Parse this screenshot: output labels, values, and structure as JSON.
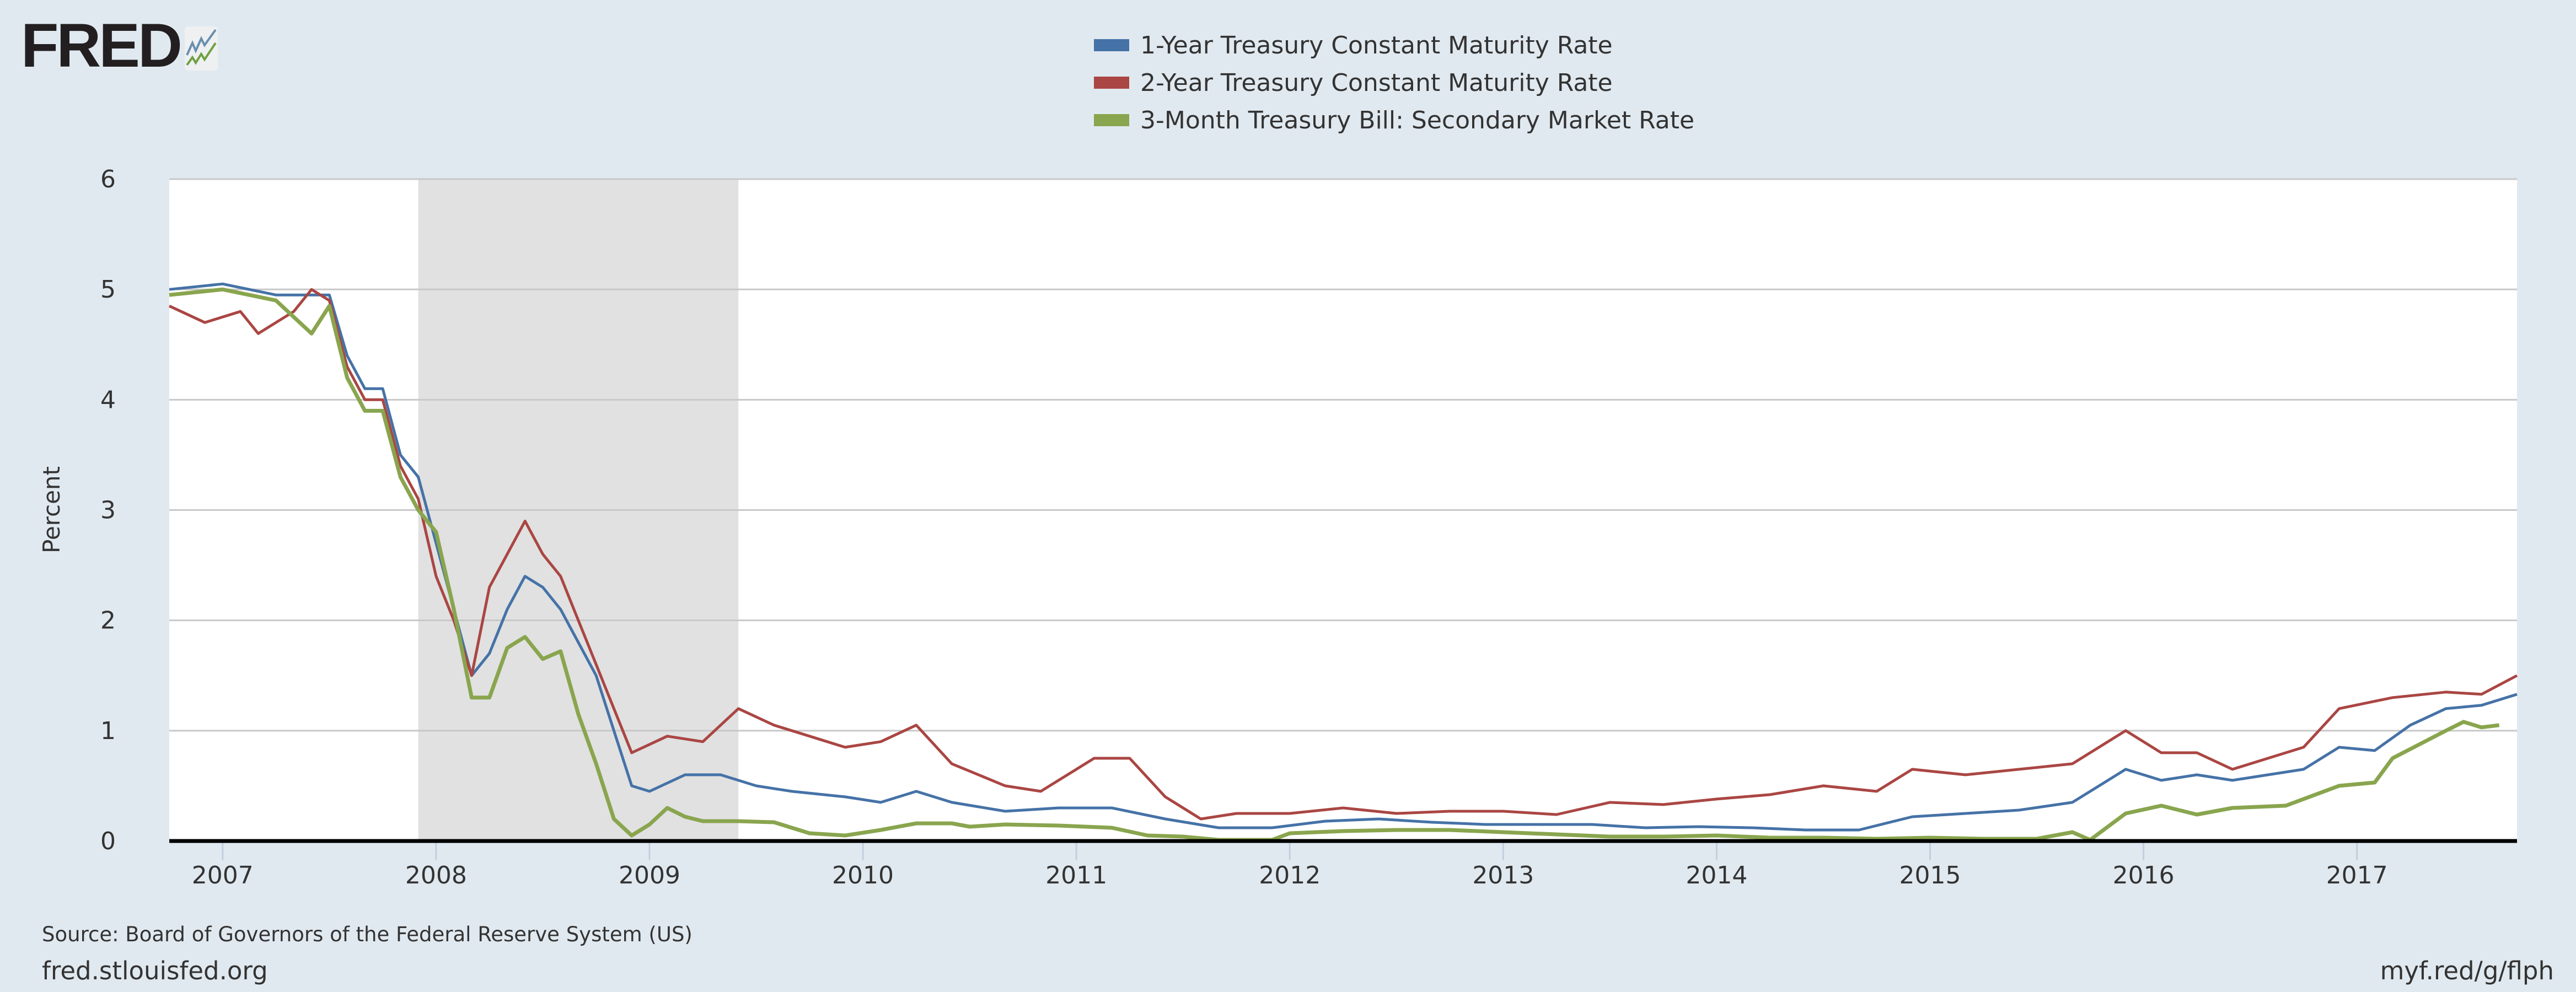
{
  "logo": {
    "text": "FRED"
  },
  "colors": {
    "series1": "#4572a7",
    "series2": "#aa4643",
    "series3": "#89a54e",
    "recession": "#e1e1e1",
    "background": "#e1e9f0"
  },
  "footer": {
    "source": "Source: Board of Governors of the Federal Reserve System (US)",
    "site": "fred.stlouisfed.org",
    "short_url": "myf.red/g/flph"
  },
  "chart_data": {
    "type": "line",
    "ylabel": "Percent",
    "ylim": [
      0,
      6
    ],
    "xlim": [
      "2006-10",
      "2017-10"
    ],
    "yticks": [
      "0",
      "1",
      "2",
      "3",
      "4",
      "5",
      "6"
    ],
    "xticks": [
      "2007",
      "2008",
      "2009",
      "2010",
      "2011",
      "2012",
      "2013",
      "2014",
      "2015",
      "2016",
      "2017"
    ],
    "grid": true,
    "legend_position": "top-center",
    "recessions": [
      {
        "start": "2007-12",
        "end": "2009-06"
      }
    ],
    "series": [
      {
        "name": "1-Year Treasury Constant Maturity Rate",
        "color": "#4572a7",
        "x": [
          "2006-10",
          "2007-01",
          "2007-04",
          "2007-07",
          "2007-08",
          "2007-09",
          "2007-10",
          "2007-11",
          "2007-12",
          "2008-01",
          "2008-02",
          "2008-03",
          "2008-04",
          "2008-05",
          "2008-06",
          "2008-07",
          "2008-08",
          "2008-09",
          "2008-10",
          "2008-11",
          "2008-12",
          "2009-01",
          "2009-03",
          "2009-05",
          "2009-07",
          "2009-09",
          "2009-12",
          "2010-02",
          "2010-04",
          "2010-06",
          "2010-09",
          "2010-12",
          "2011-03",
          "2011-06",
          "2011-09",
          "2011-12",
          "2012-03",
          "2012-06",
          "2012-09",
          "2012-12",
          "2013-03",
          "2013-06",
          "2013-09",
          "2013-12",
          "2014-03",
          "2014-06",
          "2014-09",
          "2014-12",
          "2015-03",
          "2015-06",
          "2015-09",
          "2015-12",
          "2016-02",
          "2016-04",
          "2016-06",
          "2016-08",
          "2016-10",
          "2016-12",
          "2017-02",
          "2017-04",
          "2017-06",
          "2017-08",
          "2017-10"
        ],
        "y": [
          5.0,
          5.05,
          4.95,
          4.95,
          4.4,
          4.1,
          4.1,
          3.5,
          3.3,
          2.7,
          2.1,
          1.5,
          1.7,
          2.1,
          2.4,
          2.3,
          2.1,
          1.8,
          1.5,
          1.0,
          0.5,
          0.45,
          0.6,
          0.6,
          0.5,
          0.45,
          0.4,
          0.35,
          0.45,
          0.35,
          0.27,
          0.3,
          0.3,
          0.2,
          0.12,
          0.12,
          0.18,
          0.2,
          0.17,
          0.15,
          0.15,
          0.15,
          0.12,
          0.13,
          0.12,
          0.1,
          0.1,
          0.22,
          0.25,
          0.28,
          0.35,
          0.65,
          0.55,
          0.6,
          0.55,
          0.6,
          0.65,
          0.85,
          0.82,
          1.05,
          1.2,
          1.23,
          1.33
        ]
      },
      {
        "name": "2-Year Treasury Constant Maturity Rate",
        "color": "#aa4643",
        "x": [
          "2006-10",
          "2006-12",
          "2007-02",
          "2007-03",
          "2007-05",
          "2007-06",
          "2007-07",
          "2007-08",
          "2007-09",
          "2007-10",
          "2007-11",
          "2007-12",
          "2008-01",
          "2008-02",
          "2008-03",
          "2008-04",
          "2008-05",
          "2008-06",
          "2008-07",
          "2008-08",
          "2008-09",
          "2008-10",
          "2008-11",
          "2008-12",
          "2009-02",
          "2009-04",
          "2009-06",
          "2009-08",
          "2009-10",
          "2009-12",
          "2010-02",
          "2010-04",
          "2010-06",
          "2010-09",
          "2010-11",
          "2011-02",
          "2011-04",
          "2011-06",
          "2011-08",
          "2011-10",
          "2012-01",
          "2012-04",
          "2012-07",
          "2012-10",
          "2013-01",
          "2013-04",
          "2013-07",
          "2013-10",
          "2014-01",
          "2014-04",
          "2014-07",
          "2014-10",
          "2014-12",
          "2015-03",
          "2015-06",
          "2015-09",
          "2015-12",
          "2016-02",
          "2016-04",
          "2016-06",
          "2016-08",
          "2016-10",
          "2016-12",
          "2017-03",
          "2017-06",
          "2017-08",
          "2017-10"
        ],
        "y": [
          4.85,
          4.7,
          4.8,
          4.6,
          4.8,
          5.0,
          4.9,
          4.3,
          4.0,
          4.0,
          3.4,
          3.1,
          2.4,
          2.0,
          1.5,
          2.3,
          2.6,
          2.9,
          2.6,
          2.4,
          2.0,
          1.6,
          1.2,
          0.8,
          0.95,
          0.9,
          1.2,
          1.05,
          0.95,
          0.85,
          0.9,
          1.05,
          0.7,
          0.5,
          0.45,
          0.75,
          0.75,
          0.4,
          0.2,
          0.25,
          0.25,
          0.3,
          0.25,
          0.27,
          0.27,
          0.24,
          0.35,
          0.33,
          0.38,
          0.42,
          0.5,
          0.45,
          0.65,
          0.6,
          0.65,
          0.7,
          1.0,
          0.8,
          0.8,
          0.65,
          0.75,
          0.85,
          1.2,
          1.3,
          1.35,
          1.33,
          1.5
        ]
      },
      {
        "name": "3-Month Treasury Bill: Secondary Market Rate",
        "color": "#89a54e",
        "x": [
          "2006-10",
          "2007-01",
          "2007-04",
          "2007-06",
          "2007-07",
          "2007-08",
          "2007-09",
          "2007-10",
          "2007-11",
          "2007-12",
          "2008-01",
          "2008-02",
          "2008-03",
          "2008-04",
          "2008-05",
          "2008-06",
          "2008-07",
          "2008-08",
          "2008-09",
          "2008-10",
          "2008-11",
          "2008-12",
          "2009-01",
          "2009-02",
          "2009-03",
          "2009-04",
          "2009-06",
          "2009-08",
          "2009-10",
          "2009-12",
          "2010-02",
          "2010-04",
          "2010-06",
          "2010-07",
          "2010-09",
          "2010-12",
          "2011-03",
          "2011-05",
          "2011-07",
          "2011-09",
          "2011-12",
          "2012-01",
          "2012-04",
          "2012-07",
          "2012-10",
          "2013-01",
          "2013-04",
          "2013-07",
          "2013-10",
          "2014-01",
          "2014-04",
          "2014-07",
          "2014-10",
          "2015-01",
          "2015-04",
          "2015-07",
          "2015-09",
          "2015-10",
          "2015-12",
          "2016-02",
          "2016-04",
          "2016-06",
          "2016-09",
          "2016-12",
          "2017-02",
          "2017-03",
          "2017-06",
          "2017-07",
          "2017-08",
          "2017-09"
        ],
        "y": [
          4.95,
          5.0,
          4.9,
          4.6,
          4.85,
          4.2,
          3.9,
          3.9,
          3.3,
          3.0,
          2.8,
          2.1,
          1.3,
          1.3,
          1.75,
          1.85,
          1.65,
          1.72,
          1.15,
          0.7,
          0.2,
          0.05,
          0.15,
          0.3,
          0.22,
          0.18,
          0.18,
          0.17,
          0.07,
          0.05,
          0.1,
          0.16,
          0.16,
          0.13,
          0.15,
          0.14,
          0.12,
          0.05,
          0.04,
          0.01,
          0.01,
          0.07,
          0.09,
          0.1,
          0.1,
          0.08,
          0.06,
          0.04,
          0.04,
          0.05,
          0.03,
          0.03,
          0.02,
          0.03,
          0.02,
          0.02,
          0.08,
          0.01,
          0.25,
          0.32,
          0.24,
          0.3,
          0.32,
          0.5,
          0.53,
          0.75,
          1.0,
          1.08,
          1.03,
          1.05
        ]
      }
    ]
  }
}
